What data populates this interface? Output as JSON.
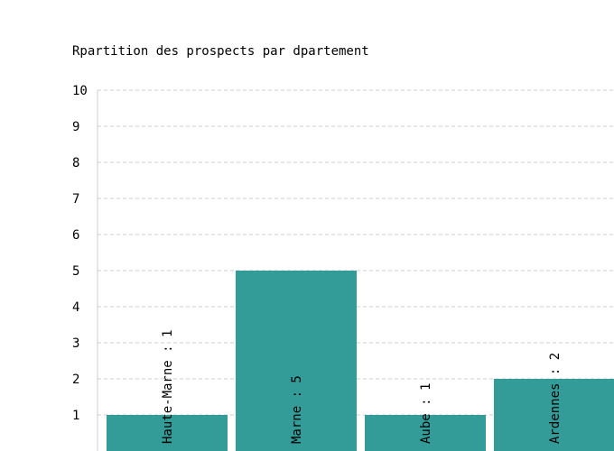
{
  "chart_data": {
    "type": "bar",
    "title": "Rpartition des prospects par dpartement",
    "categories": [
      "Haute-Marne",
      "Marne",
      "Aube",
      "Ardennes"
    ],
    "values": [
      1,
      5,
      1,
      2
    ],
    "bar_labels": [
      "Haute-Marne : 1",
      "Marne : 5",
      "Aube : 1",
      "Ardennes : 2"
    ],
    "ylim": [
      0,
      10
    ],
    "yticks": [
      "1",
      "2",
      "3",
      "4",
      "5",
      "6",
      "7",
      "8",
      "9",
      "10"
    ],
    "grid": true,
    "bar_color": "#339b98",
    "grid_color": "#cccccc"
  }
}
